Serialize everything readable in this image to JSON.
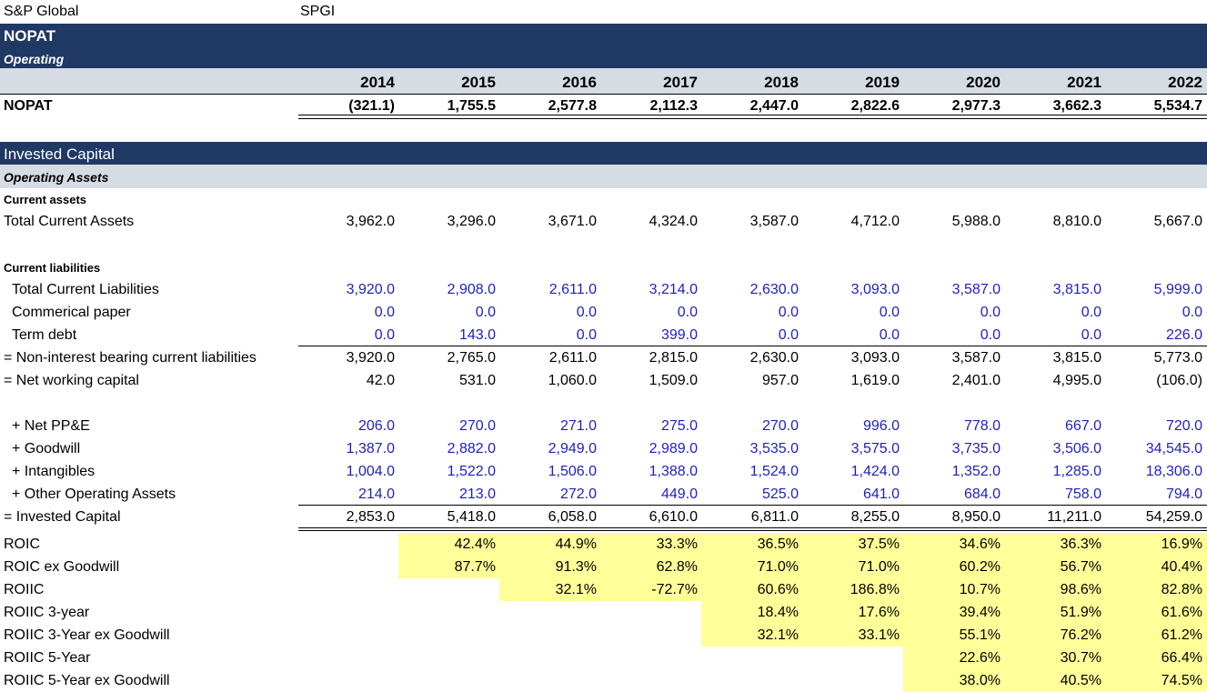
{
  "company": {
    "name": "S&P Global",
    "ticker": "SPGI"
  },
  "nopat_section": {
    "title": "NOPAT",
    "subtitle": "Operating"
  },
  "years": [
    "2014",
    "2015",
    "2016",
    "2017",
    "2018",
    "2019",
    "2020",
    "2021",
    "2022"
  ],
  "nopat_row": {
    "label": "NOPAT",
    "values": [
      "(321.1)",
      "1,755.5",
      "2,577.8",
      "2,112.3",
      "2,447.0",
      "2,822.6",
      "2,977.3",
      "3,662.3",
      "5,534.7"
    ]
  },
  "invested_section": {
    "title": "Invested Capital",
    "subtitle": "Operating Assets"
  },
  "current_assets": {
    "heading": "Current assets",
    "total": {
      "label": "Total Current Assets",
      "values": [
        "3,962.0",
        "3,296.0",
        "3,671.0",
        "4,324.0",
        "3,587.0",
        "4,712.0",
        "5,988.0",
        "8,810.0",
        "5,667.0"
      ]
    }
  },
  "current_liabilities": {
    "heading": "Current liabilities",
    "rows": [
      {
        "label": "Total Current Liabilities",
        "values": [
          "3,920.0",
          "2,908.0",
          "2,611.0",
          "3,214.0",
          "2,630.0",
          "3,093.0",
          "3,587.0",
          "3,815.0",
          "5,999.0"
        ]
      },
      {
        "label": "Commerical paper",
        "values": [
          "0.0",
          "0.0",
          "0.0",
          "0.0",
          "0.0",
          "0.0",
          "0.0",
          "0.0",
          "0.0"
        ]
      },
      {
        "label": "Term debt",
        "values": [
          "0.0",
          "143.0",
          "0.0",
          "399.0",
          "0.0",
          "0.0",
          "0.0",
          "0.0",
          "226.0"
        ]
      }
    ]
  },
  "nibcl": {
    "label": "= Non-interest bearing current liabilities",
    "values": [
      "3,920.0",
      "2,765.0",
      "2,611.0",
      "2,815.0",
      "2,630.0",
      "3,093.0",
      "3,587.0",
      "3,815.0",
      "5,773.0"
    ]
  },
  "nwc": {
    "label": "= Net working capital",
    "values": [
      "42.0",
      "531.0",
      "1,060.0",
      "1,509.0",
      "957.0",
      "1,619.0",
      "2,401.0",
      "4,995.0",
      "(106.0)"
    ]
  },
  "additions": [
    {
      "label": "+ Net PP&E",
      "values": [
        "206.0",
        "270.0",
        "271.0",
        "275.0",
        "270.0",
        "996.0",
        "778.0",
        "667.0",
        "720.0"
      ]
    },
    {
      "label": "+ Goodwill",
      "values": [
        "1,387.0",
        "2,882.0",
        "2,949.0",
        "2,989.0",
        "3,535.0",
        "3,575.0",
        "3,735.0",
        "3,506.0",
        "34,545.0"
      ]
    },
    {
      "label": "+ Intangibles",
      "values": [
        "1,004.0",
        "1,522.0",
        "1,506.0",
        "1,388.0",
        "1,524.0",
        "1,424.0",
        "1,352.0",
        "1,285.0",
        "18,306.0"
      ]
    },
    {
      "label": "+ Other Operating Assets",
      "values": [
        "214.0",
        "213.0",
        "272.0",
        "449.0",
        "525.0",
        "641.0",
        "684.0",
        "758.0",
        "794.0"
      ]
    }
  ],
  "invested_capital": {
    "label": "= Invested Capital",
    "values": [
      "2,853.0",
      "5,418.0",
      "6,058.0",
      "6,610.0",
      "6,811.0",
      "8,255.0",
      "8,950.0",
      "11,211.0",
      "54,259.0"
    ]
  },
  "ratios": [
    {
      "label": "ROIC",
      "values": [
        "",
        "42.4%",
        "44.9%",
        "33.3%",
        "36.5%",
        "37.5%",
        "34.6%",
        "36.3%",
        "16.9%"
      ]
    },
    {
      "label": "ROIC ex Goodwill",
      "values": [
        "",
        "87.7%",
        "91.3%",
        "62.8%",
        "71.0%",
        "71.0%",
        "60.2%",
        "56.7%",
        "40.4%"
      ]
    },
    {
      "label": "ROIIC",
      "values": [
        "",
        "",
        "32.1%",
        "-72.7%",
        "60.6%",
        "186.8%",
        "10.7%",
        "98.6%",
        "82.8%"
      ]
    },
    {
      "label": "ROIIC 3-year",
      "values": [
        "",
        "",
        "",
        "",
        "18.4%",
        "17.6%",
        "39.4%",
        "51.9%",
        "61.6%"
      ]
    },
    {
      "label": "ROIIC 3-Year ex Goodwill",
      "values": [
        "",
        "",
        "",
        "",
        "32.1%",
        "33.1%",
        "55.1%",
        "76.2%",
        "61.2%"
      ]
    },
    {
      "label": "ROIIC 5-Year",
      "values": [
        "",
        "",
        "",
        "",
        "",
        "",
        "22.6%",
        "30.7%",
        "66.4%"
      ]
    },
    {
      "label": "ROIIC 5-Year ex Goodwill",
      "values": [
        "",
        "",
        "",
        "",
        "",
        "",
        "38.0%",
        "40.5%",
        "74.5%"
      ]
    }
  ],
  "highlight_color": "#ffff99",
  "header_color": "#1f3864",
  "subheader_color": "#d6dce4",
  "input_text_color": "#1f1fbf"
}
